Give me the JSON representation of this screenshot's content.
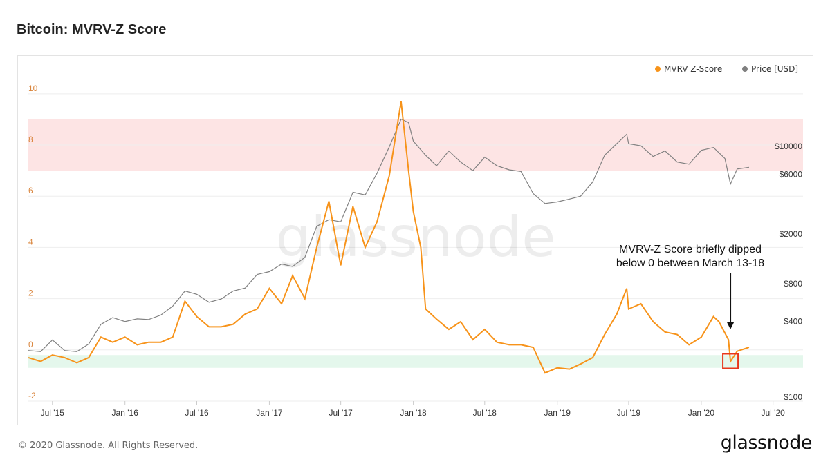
{
  "page": {
    "title": "Bitcoin: MVRV-Z Score",
    "copyright": "© 2020 Glassnode. All Rights Reserved.",
    "brand": "glassnode",
    "watermark": "glassnode"
  },
  "chart_data": {
    "type": "line",
    "title": "Bitcoin: MVRV-Z Score",
    "legend": [
      {
        "label": "MVRV Z-Score",
        "color": "#f7931a"
      },
      {
        "label": "Price [USD]",
        "color": "#808080"
      }
    ],
    "legend_position": "top-right",
    "x_ticks": [
      "Jul '15",
      "Jan '16",
      "Jul '16",
      "Jan '17",
      "Jul '17",
      "Jan '18",
      "Jul '18",
      "Jan '19",
      "Jul '19",
      "Jan '20",
      "Jul '20"
    ],
    "x_range": [
      "2015-05-01",
      "2020-09-15"
    ],
    "y_left": {
      "label": "MVRV Z-Score",
      "ticks": [
        -2,
        0,
        2,
        4,
        6,
        8,
        10
      ],
      "range": [
        -2,
        10.4
      ],
      "tick_color": "#d9843b"
    },
    "y_right": {
      "label": "Price [USD]",
      "scale": "log",
      "ticks": [
        100,
        400,
        800,
        2000,
        6000,
        10000
      ],
      "tick_labels": [
        "$100",
        "$400",
        "$800",
        "$2000",
        "$6000",
        "$10000"
      ]
    },
    "bands": [
      {
        "name": "overvalued-zone",
        "y_from": 7,
        "y_to": 9,
        "color": "#fde4e4"
      },
      {
        "name": "undervalued-zone",
        "y_from": -0.2,
        "y_to": -0.7,
        "color": "#e4f7ec"
      }
    ],
    "annotation": {
      "text_lines": [
        "MVRV-Z Score briefly dipped",
        "below 0 between March 13-18"
      ],
      "target_date": "2020-03-15",
      "target_value": -0.45,
      "box_color": "#e8371b"
    },
    "series": [
      {
        "name": "MVRV Z-Score",
        "color": "#f7931a",
        "points": [
          [
            "2015-05-01",
            -0.3
          ],
          [
            "2015-06-01",
            -0.45
          ],
          [
            "2015-07-01",
            -0.2
          ],
          [
            "2015-08-01",
            -0.3
          ],
          [
            "2015-09-01",
            -0.5
          ],
          [
            "2015-10-01",
            -0.3
          ],
          [
            "2015-11-01",
            0.5
          ],
          [
            "2015-12-01",
            0.3
          ],
          [
            "2016-01-01",
            0.5
          ],
          [
            "2016-02-01",
            0.2
          ],
          [
            "2016-03-01",
            0.3
          ],
          [
            "2016-04-01",
            0.3
          ],
          [
            "2016-05-01",
            0.5
          ],
          [
            "2016-06-01",
            1.9
          ],
          [
            "2016-07-01",
            1.3
          ],
          [
            "2016-08-01",
            0.9
          ],
          [
            "2016-09-01",
            0.9
          ],
          [
            "2016-10-01",
            1.0
          ],
          [
            "2016-11-01",
            1.4
          ],
          [
            "2016-12-01",
            1.6
          ],
          [
            "2017-01-01",
            2.4
          ],
          [
            "2017-02-01",
            1.8
          ],
          [
            "2017-03-01",
            2.9
          ],
          [
            "2017-04-01",
            2.0
          ],
          [
            "2017-05-01",
            4.0
          ],
          [
            "2017-06-01",
            5.8
          ],
          [
            "2017-07-01",
            3.3
          ],
          [
            "2017-08-01",
            5.6
          ],
          [
            "2017-09-01",
            4.0
          ],
          [
            "2017-10-01",
            5.0
          ],
          [
            "2017-11-01",
            6.8
          ],
          [
            "2017-12-01",
            9.7
          ],
          [
            "2017-12-20",
            7.0
          ],
          [
            "2018-01-01",
            5.4
          ],
          [
            "2018-01-20",
            4.0
          ],
          [
            "2018-02-01",
            1.6
          ],
          [
            "2018-03-01",
            1.2
          ],
          [
            "2018-04-01",
            0.8
          ],
          [
            "2018-05-01",
            1.1
          ],
          [
            "2018-06-01",
            0.4
          ],
          [
            "2018-07-01",
            0.8
          ],
          [
            "2018-08-01",
            0.3
          ],
          [
            "2018-09-01",
            0.2
          ],
          [
            "2018-10-01",
            0.2
          ],
          [
            "2018-11-01",
            0.1
          ],
          [
            "2018-12-01",
            -0.9
          ],
          [
            "2019-01-01",
            -0.7
          ],
          [
            "2019-02-01",
            -0.75
          ],
          [
            "2019-03-01",
            -0.55
          ],
          [
            "2019-04-01",
            -0.3
          ],
          [
            "2019-05-01",
            0.6
          ],
          [
            "2019-06-01",
            1.4
          ],
          [
            "2019-06-26",
            2.4
          ],
          [
            "2019-07-01",
            1.6
          ],
          [
            "2019-08-01",
            1.8
          ],
          [
            "2019-09-01",
            1.1
          ],
          [
            "2019-10-01",
            0.7
          ],
          [
            "2019-11-01",
            0.6
          ],
          [
            "2019-12-01",
            0.2
          ],
          [
            "2020-01-01",
            0.5
          ],
          [
            "2020-02-01",
            1.3
          ],
          [
            "2020-02-15",
            1.1
          ],
          [
            "2020-03-10",
            0.4
          ],
          [
            "2020-03-15",
            -0.45
          ],
          [
            "2020-04-01",
            -0.05
          ],
          [
            "2020-05-01",
            0.1
          ]
        ]
      },
      {
        "name": "Price [USD]",
        "color": "#808080",
        "points": [
          [
            "2015-05-01",
            235
          ],
          [
            "2015-06-01",
            230
          ],
          [
            "2015-07-01",
            285
          ],
          [
            "2015-08-01",
            235
          ],
          [
            "2015-09-01",
            230
          ],
          [
            "2015-10-01",
            265
          ],
          [
            "2015-11-01",
            380
          ],
          [
            "2015-12-01",
            430
          ],
          [
            "2016-01-01",
            400
          ],
          [
            "2016-02-01",
            420
          ],
          [
            "2016-03-01",
            415
          ],
          [
            "2016-04-01",
            450
          ],
          [
            "2016-05-01",
            530
          ],
          [
            "2016-06-01",
            700
          ],
          [
            "2016-07-01",
            660
          ],
          [
            "2016-08-01",
            570
          ],
          [
            "2016-09-01",
            605
          ],
          [
            "2016-10-01",
            700
          ],
          [
            "2016-11-01",
            740
          ],
          [
            "2016-12-01",
            950
          ],
          [
            "2017-01-01",
            1000
          ],
          [
            "2017-02-01",
            1150
          ],
          [
            "2017-03-01",
            1100
          ],
          [
            "2017-04-01",
            1300
          ],
          [
            "2017-05-01",
            2300
          ],
          [
            "2017-06-01",
            2600
          ],
          [
            "2017-07-01",
            2500
          ],
          [
            "2017-08-01",
            4300
          ],
          [
            "2017-09-01",
            4100
          ],
          [
            "2017-10-01",
            6100
          ],
          [
            "2017-11-01",
            9900
          ],
          [
            "2017-12-01",
            16500
          ],
          [
            "2017-12-20",
            15500
          ],
          [
            "2018-01-01",
            11000
          ],
          [
            "2018-02-01",
            8500
          ],
          [
            "2018-03-01",
            7000
          ],
          [
            "2018-04-01",
            9200
          ],
          [
            "2018-05-01",
            7500
          ],
          [
            "2018-06-01",
            6400
          ],
          [
            "2018-07-01",
            8200
          ],
          [
            "2018-08-01",
            7000
          ],
          [
            "2018-09-01",
            6500
          ],
          [
            "2018-10-01",
            6300
          ],
          [
            "2018-11-01",
            4200
          ],
          [
            "2018-12-01",
            3500
          ],
          [
            "2019-01-01",
            3600
          ],
          [
            "2019-02-01",
            3800
          ],
          [
            "2019-03-01",
            4000
          ],
          [
            "2019-04-01",
            5200
          ],
          [
            "2019-05-01",
            8500
          ],
          [
            "2019-06-26",
            12500
          ],
          [
            "2019-07-01",
            10500
          ],
          [
            "2019-08-01",
            10100
          ],
          [
            "2019-09-01",
            8300
          ],
          [
            "2019-10-01",
            9200
          ],
          [
            "2019-11-01",
            7500
          ],
          [
            "2019-12-01",
            7200
          ],
          [
            "2020-01-01",
            9300
          ],
          [
            "2020-02-01",
            9800
          ],
          [
            "2020-03-01",
            8000
          ],
          [
            "2020-03-15",
            5000
          ],
          [
            "2020-04-01",
            6600
          ],
          [
            "2020-05-01",
            6800
          ]
        ]
      }
    ]
  }
}
